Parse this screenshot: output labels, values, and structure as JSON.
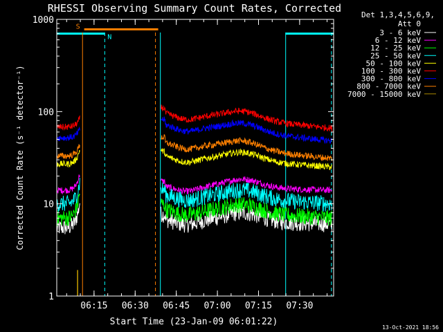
{
  "chart_data": {
    "type": "line",
    "title": "RHESSI Observing Summary Count Rates, Corrected",
    "ylabel": "Corrected Count Rate (s⁻¹ detector⁻¹)",
    "xlabel": "Start Time (23-Jan-09 06:01:22)",
    "yscale": "log",
    "ylim": [
      1,
      1000
    ],
    "xlim_minutes_since_start": [
      0,
      101
    ],
    "x_ticks": [
      {
        "label": "06:15",
        "minute": 13.6
      },
      {
        "label": "06:30",
        "minute": 28.6
      },
      {
        "label": "06:45",
        "minute": 43.6
      },
      {
        "label": "07:00",
        "minute": 58.6
      },
      {
        "label": "07:15",
        "minute": 73.6
      },
      {
        "label": "07:30",
        "minute": 88.6
      }
    ],
    "y_ticks": [
      {
        "label": "1",
        "value": 1
      },
      {
        "label": "10",
        "value": 10
      },
      {
        "label": "100",
        "value": 100
      },
      {
        "label": "1000",
        "value": 1000
      }
    ],
    "legend_header": [
      "Det 1,3,4,5,6,9,",
      "Att 0"
    ],
    "legend_position": "right",
    "series": [
      {
        "name": "3 - 6 keV",
        "color": "#ffffff",
        "pre": [
          5.5,
          11
        ],
        "post": [
          7,
          6
        ]
      },
      {
        "name": "6 - 12 keV",
        "color": "#ff00ff",
        "pre": [
          14,
          22
        ],
        "post": [
          16,
          14
        ]
      },
      {
        "name": "12 - 25 keV",
        "color": "#00ff00",
        "pre": [
          7,
          14
        ],
        "post": [
          9,
          7
        ]
      },
      {
        "name": "25 - 50 keV",
        "color": "#00ffff",
        "pre": [
          10,
          18
        ],
        "post": [
          13,
          10
        ]
      },
      {
        "name": "50 - 100 keV",
        "color": "#ffff00",
        "pre": [
          27,
          40
        ],
        "post": [
          34,
          25
        ]
      },
      {
        "name": "100 - 300 keV",
        "color": "#ff0000",
        "pre": [
          68,
          85
        ],
        "post": [
          100,
          66
        ]
      },
      {
        "name": "300 - 800 keV",
        "color": "#0000ff",
        "pre": [
          52,
          65
        ],
        "post": [
          75,
          48
        ]
      },
      {
        "name": "800 - 7000 keV",
        "color": "#ff8000",
        "pre": [
          33,
          45
        ],
        "post": [
          48,
          31
        ]
      },
      {
        "name": "7000 - 15000 keV",
        "color": "#aa8800",
        "pre": [
          1,
          1
        ],
        "post": [
          1,
          1
        ]
      }
    ],
    "segments": {
      "pre_end_minute": 8.5,
      "gap_end_minute": 38.0
    },
    "annotations": [
      {
        "label": "S",
        "color": "#ff8000",
        "start": 10.0,
        "end": 37.0,
        "value": 780
      },
      {
        "label": "N",
        "color": "#00ffff",
        "start": 0.0,
        "end": 17.5,
        "value": 700
      },
      {
        "label": "",
        "color": "#00ffff",
        "start": 83.5,
        "end": 101,
        "value": 700
      }
    ],
    "vertical_markers": [
      {
        "minute": 9.4,
        "color": "#ff8000",
        "style": "solid"
      },
      {
        "minute": 17.5,
        "color": "#00ffff",
        "style": "dashed"
      },
      {
        "minute": 36.0,
        "color": "#ff8000",
        "style": "dashed"
      },
      {
        "minute": 37.8,
        "color": "#00ffff",
        "style": "solid"
      },
      {
        "minute": 83.5,
        "color": "#00ffff",
        "style": "solid"
      },
      {
        "minute": 100.2,
        "color": "#00ffff",
        "style": "dashed"
      }
    ],
    "footer": "13-Oct-2021 18:56"
  }
}
